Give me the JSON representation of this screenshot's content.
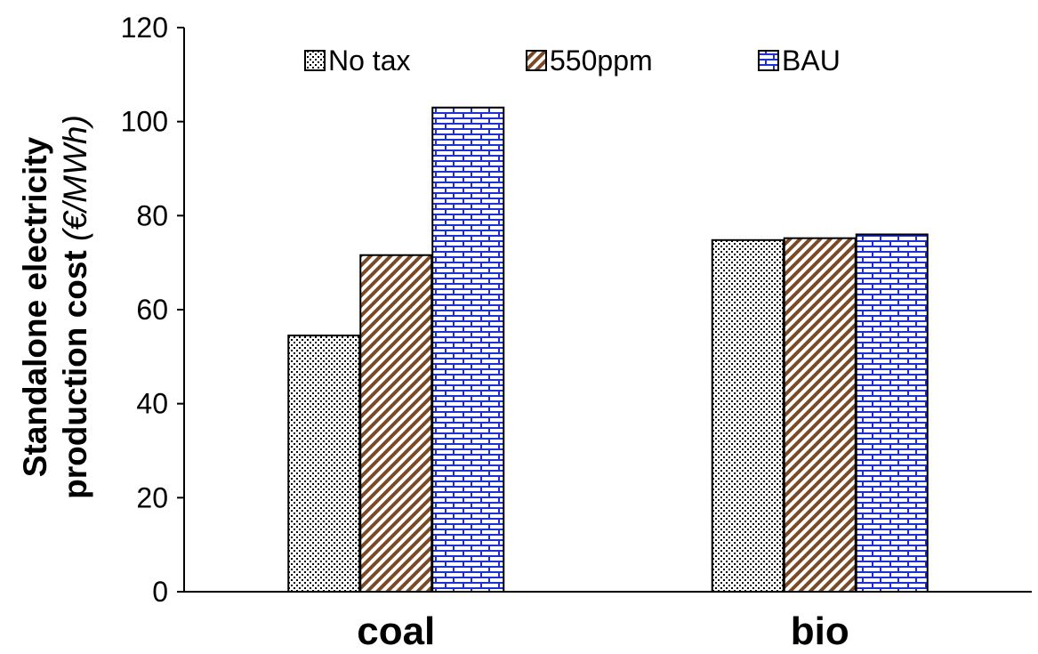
{
  "chart_data": {
    "type": "bar",
    "categories": [
      "coal",
      "bio"
    ],
    "series": [
      {
        "name": "No tax",
        "values": [
          54.5,
          74.8
        ],
        "pattern": "dots",
        "color": "#000000"
      },
      {
        "name": "550ppm",
        "values": [
          71.6,
          75.2
        ],
        "pattern": "diagonal",
        "color": "#7a4a26"
      },
      {
        "name": "BAU",
        "values": [
          103.0,
          76.0
        ],
        "pattern": "bricks",
        "color": "#1f2fd6"
      }
    ],
    "ylabel_line1": "Standalone electricity",
    "ylabel_line2": "production cost",
    "ylabel_unit": "(€/MWh)",
    "xlabel": "",
    "ylim": [
      0,
      120
    ],
    "yticks": [
      0,
      20,
      40,
      60,
      80,
      100,
      120
    ],
    "grid": false,
    "legend_position": "top"
  }
}
